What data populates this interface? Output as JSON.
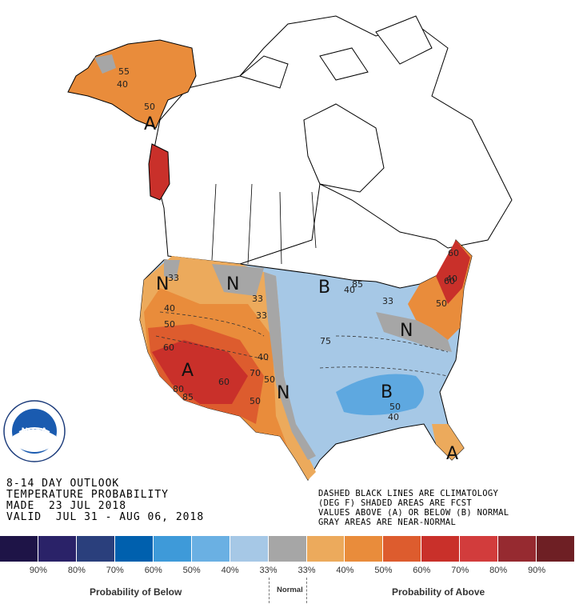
{
  "map": {
    "category_letters": {
      "above": "A",
      "below": "B",
      "normal": "N"
    },
    "contour_labels": [
      "55",
      "40",
      "50",
      "33",
      "40",
      "50",
      "60",
      "80",
      "85",
      "60",
      "70",
      "40",
      "50",
      "33",
      "33",
      "33",
      "40",
      "75",
      "50",
      "40",
      "50",
      "60",
      "40",
      "85",
      "60",
      "50"
    ],
    "colors": {
      "below_33": "#a6c8e6",
      "below_40": "#93bde4",
      "below_50": "#5ea8e0",
      "normal": "#a6a6a6",
      "above_33": "#ecaa5c",
      "above_40": "#e98c3b",
      "above_50": "#dd5c2e",
      "above_60": "#c9302a",
      "above_70": "#b02126"
    }
  },
  "title_lines": [
    "8-14 DAY OUTLOOK",
    "TEMPERATURE PROBABILITY",
    "MADE  23 JUL 2018",
    "VALID  JUL 31 - AUG 06, 2018"
  ],
  "notes_lines": [
    "DASHED BLACK LINES ARE CLIMATOLOGY",
    "(DEG F) SHADED AREAS ARE FCST",
    "VALUES ABOVE (A) OR BELOW (B) NORMAL",
    "GRAY AREAS ARE NEAR-NORMAL"
  ],
  "logo": {
    "text": "NOAA",
    "ring_text": "NATIONAL OCEANIC AND ATMOSPHERIC ADMINISTRATION · U.S. DEPARTMENT OF COMMERCE"
  },
  "legend": {
    "swatches": [
      "#1e1447",
      "#2a2268",
      "#2a3f7c",
      "#0060ae",
      "#3e9ad9",
      "#6ab0e3",
      "#a6c8e6",
      "#a6a6a6",
      "#ecaa5c",
      "#e98c3b",
      "#dd5c2e",
      "#c9302a",
      "#d23c3c",
      "#962a30",
      "#6e1f24"
    ],
    "ticks": [
      "90%",
      "80%",
      "70%",
      "60%",
      "50%",
      "40%",
      "33%",
      "33%",
      "40%",
      "50%",
      "60%",
      "70%",
      "80%",
      "90%"
    ],
    "below_label": "Probability of Below",
    "normal_label": "Normal",
    "above_label": "Probability of Above"
  }
}
